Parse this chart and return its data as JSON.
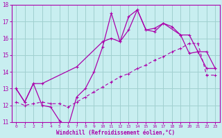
{
  "xlabel": "Windchill (Refroidissement éolien,°C)",
  "xlim": [
    -0.5,
    23.5
  ],
  "ylim": [
    11,
    18
  ],
  "xticks": [
    0,
    1,
    2,
    3,
    4,
    5,
    6,
    7,
    8,
    9,
    10,
    11,
    12,
    13,
    14,
    15,
    16,
    17,
    18,
    19,
    20,
    21,
    22,
    23
  ],
  "yticks": [
    11,
    12,
    13,
    14,
    15,
    16,
    17,
    18
  ],
  "background_color": "#c8eef0",
  "grid_color": "#a0d0d0",
  "line_color": "#aa00aa",
  "line1_x": [
    0,
    1,
    2,
    3,
    4,
    5,
    6,
    7,
    8,
    9,
    10,
    11,
    12,
    13,
    14,
    15,
    16,
    17,
    18,
    19,
    20,
    21,
    22,
    23
  ],
  "line1_y": [
    13.0,
    12.2,
    13.3,
    12.0,
    11.9,
    11.1,
    10.7,
    12.5,
    13.0,
    14.0,
    15.5,
    17.5,
    15.8,
    17.3,
    17.7,
    16.5,
    16.4,
    16.9,
    16.7,
    16.2,
    15.1,
    15.2,
    14.2,
    14.2
  ],
  "line2_x": [
    0,
    1,
    2,
    3,
    7,
    10,
    11,
    12,
    13,
    14,
    15,
    16,
    17,
    19,
    20,
    21,
    22,
    23
  ],
  "line2_y": [
    13.0,
    12.2,
    13.3,
    13.3,
    14.3,
    15.8,
    16.0,
    15.8,
    16.5,
    17.7,
    16.5,
    16.6,
    16.9,
    16.2,
    16.2,
    15.2,
    15.2,
    14.2
  ],
  "line3_x": [
    0,
    1,
    2,
    3,
    4,
    5,
    6,
    7,
    8,
    9,
    10,
    11,
    12,
    13,
    14,
    15,
    16,
    17,
    18,
    19,
    20,
    21,
    22,
    23
  ],
  "line3_y": [
    12.2,
    12.0,
    12.1,
    12.2,
    12.1,
    12.1,
    11.9,
    12.2,
    12.5,
    12.8,
    13.1,
    13.4,
    13.7,
    13.9,
    14.2,
    14.4,
    14.7,
    14.9,
    15.2,
    15.4,
    15.7,
    15.7,
    13.8,
    13.8
  ]
}
